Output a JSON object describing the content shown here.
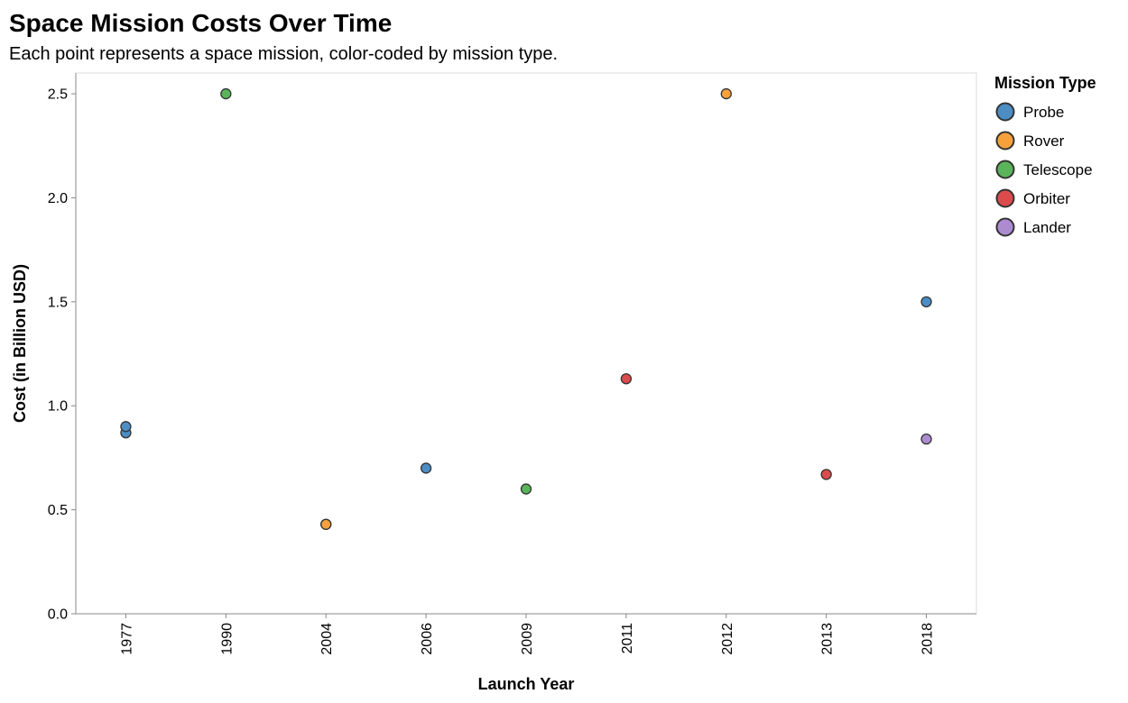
{
  "chart_data": {
    "type": "scatter",
    "title": "Space Mission Costs Over Time",
    "subtitle": "Each point represents a space mission, color-coded by mission type.",
    "xlabel": "Launch Year",
    "ylabel": "Cost (in Billion USD)",
    "x_categories": [
      "1977",
      "1990",
      "2004",
      "2006",
      "2009",
      "2011",
      "2012",
      "2013",
      "2018"
    ],
    "ylim": [
      0,
      2.6
    ],
    "y_ticks": [
      "0.0",
      "0.5",
      "1.0",
      "1.5",
      "2.0",
      "2.5"
    ],
    "grid": false,
    "legend": {
      "title": "Mission Type",
      "placement": "right",
      "entries": [
        {
          "name": "Probe",
          "color": "#4c8ec4"
        },
        {
          "name": "Rover",
          "color": "#f7a13d"
        },
        {
          "name": "Telescope",
          "color": "#5ab55a"
        },
        {
          "name": "Orbiter",
          "color": "#dc4c4c"
        },
        {
          "name": "Lander",
          "color": "#ad8bd1"
        }
      ]
    },
    "points": [
      {
        "x": "1977",
        "y": 0.87,
        "type": "Probe"
      },
      {
        "x": "1977",
        "y": 0.9,
        "type": "Probe"
      },
      {
        "x": "1990",
        "y": 2.5,
        "type": "Telescope"
      },
      {
        "x": "2004",
        "y": 0.43,
        "type": "Rover"
      },
      {
        "x": "2004",
        "y": 0.43,
        "type": "Rover"
      },
      {
        "x": "2006",
        "y": 0.7,
        "type": "Probe"
      },
      {
        "x": "2009",
        "y": 0.6,
        "type": "Telescope"
      },
      {
        "x": "2011",
        "y": 1.13,
        "type": "Orbiter"
      },
      {
        "x": "2012",
        "y": 2.5,
        "type": "Rover"
      },
      {
        "x": "2013",
        "y": 0.67,
        "type": "Orbiter"
      },
      {
        "x": "2018",
        "y": 1.5,
        "type": "Probe"
      },
      {
        "x": "2018",
        "y": 0.84,
        "type": "Lander"
      }
    ]
  }
}
